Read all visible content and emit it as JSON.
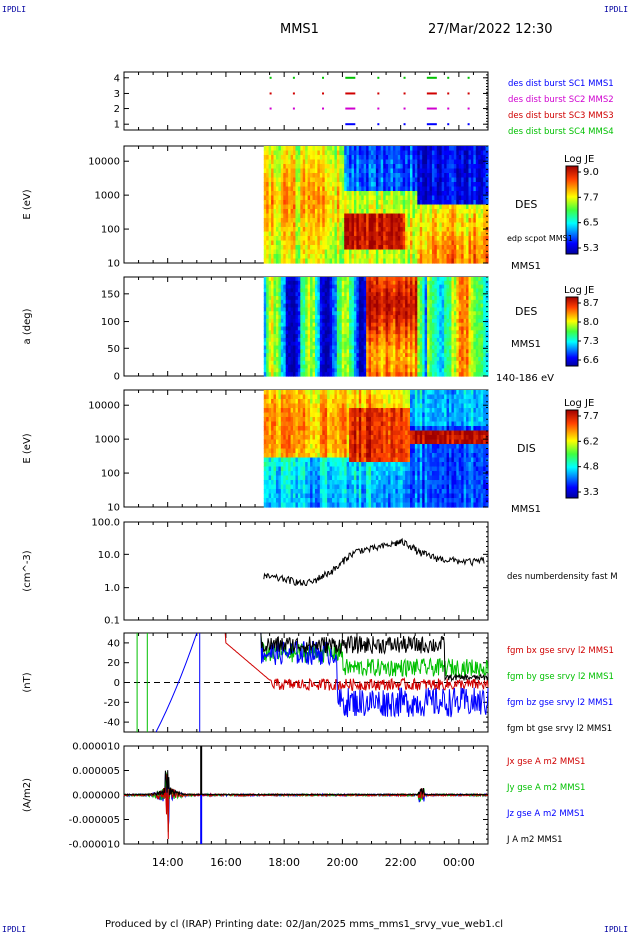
{
  "corners": {
    "top_left": "IPDLI",
    "top_right": "IPDLI",
    "bottom_left": "IPDLI",
    "bottom_right": "IPDLI"
  },
  "header": {
    "spacecraft": "MMS1",
    "datetime": "27/Mar/2022 12:30"
  },
  "footer": {
    "text": "Produced by cl (IRAP)   Printing date: 02/Jan/2025   mms_mms1_srvy_vue_web1.cl"
  },
  "colors": {
    "sc1": "#0000ff",
    "sc2": "#d000d0",
    "sc3": "#d00000",
    "sc4": "#00c000",
    "black": "#000000"
  },
  "chart_data": [
    {
      "type": "scatter",
      "id": "burst-availability",
      "ylabel": "",
      "y_ticks": [
        "1",
        "2",
        "3",
        "4"
      ],
      "legend": [
        {
          "label": "des dist burst SC1 MMS1",
          "color": "#0000ff"
        },
        {
          "label": "des dist burst SC2 MMS2",
          "color": "#d000d0"
        },
        {
          "label": "des dist burst SC3 MMS3",
          "color": "#d00000"
        },
        {
          "label": "des dist burst SC4 MMS4",
          "color": "#00c000"
        }
      ],
      "burst_times_h": [
        17.5,
        18.3,
        19.3,
        20.1,
        21.2,
        22.1,
        22.9,
        23.6,
        24.3
      ]
    },
    {
      "type": "heatmap",
      "id": "des-energy",
      "ylabel": "E (eV)",
      "y_ticks": [
        "10",
        "100",
        "1000",
        "10000"
      ],
      "right_labels": [
        "DES",
        "edp scpot MMS1",
        "MMS1"
      ],
      "colorbar": {
        "title": "Log JE",
        "ticks": [
          "9.0",
          "7.7",
          "6.5",
          "5.3"
        ]
      },
      "data_start_h": 17.3
    },
    {
      "type": "heatmap",
      "id": "des-pitch",
      "ylabel": "a (deg)",
      "y_ticks": [
        "0",
        "50",
        "100",
        "150"
      ],
      "right_labels": [
        "DES",
        "MMS1",
        "140-186 eV"
      ],
      "colorbar": {
        "title": "Log JE",
        "ticks": [
          "8.7",
          "8.0",
          "7.3",
          "6.6"
        ]
      },
      "data_start_h": 17.3
    },
    {
      "type": "heatmap",
      "id": "dis-energy",
      "ylabel": "E (eV)",
      "y_ticks": [
        "10",
        "100",
        "1000",
        "10000"
      ],
      "right_labels": [
        "DIS",
        "MMS1"
      ],
      "colorbar": {
        "title": "Log JE",
        "ticks": [
          "7.7",
          "6.2",
          "4.8",
          "3.3"
        ]
      },
      "data_start_h": 17.3
    },
    {
      "type": "line",
      "id": "density",
      "ylabel": "(cm^-3)",
      "y_ticks": [
        "0.1",
        "1.0",
        "10.0",
        "100.0"
      ],
      "legend": [
        {
          "label": "des numberdensity fast M",
          "color": "#000000"
        }
      ],
      "series": [
        {
          "x": [
            17.3,
            17.6,
            18.0,
            18.3,
            18.6,
            19.0,
            19.3,
            19.6,
            19.9,
            20.2,
            20.6,
            21.0,
            21.4,
            21.8,
            22.0,
            22.3,
            22.6,
            22.9,
            23.2,
            23.6,
            24.0,
            24.5,
            24.9
          ],
          "y": [
            2.2,
            2.0,
            1.8,
            1.6,
            1.3,
            1.5,
            2.2,
            3.0,
            4.5,
            9,
            14,
            15,
            18,
            22,
            25,
            20,
            12,
            10,
            8,
            7,
            6.5,
            6,
            7
          ]
        }
      ]
    },
    {
      "type": "line",
      "id": "magnetic-field",
      "ylabel": "(nT)",
      "y_ticks": [
        "-40",
        "-20",
        "0",
        "20",
        "40"
      ],
      "ylim": [
        -50,
        50
      ],
      "legend": [
        {
          "label": "fgm bx gse srvy l2 MMS1",
          "color": "#d00000"
        },
        {
          "label": "fgm by gse srvy l2 MMS1",
          "color": "#00c000"
        },
        {
          "label": "fgm bz gse srvy l2 MMS1",
          "color": "#0000ff"
        },
        {
          "label": "fgm bt gse srvy l2 MMS1",
          "color": "#000000"
        }
      ]
    },
    {
      "type": "line",
      "id": "current-density",
      "ylabel": "(A/m2)",
      "y_ticks": [
        "-0.000010",
        "-0.000005",
        "0.000000",
        "0.000005",
        "0.000010"
      ],
      "legend": [
        {
          "label": "Jx gse A m2 MMS1",
          "color": "#d00000"
        },
        {
          "label": "Jy gse A m2 MMS1",
          "color": "#00c000"
        },
        {
          "label": "Jz gse A m2 MMS1",
          "color": "#0000ff"
        },
        {
          "label": "J A m2 MMS1",
          "color": "#000000"
        }
      ]
    }
  ],
  "x_axis": {
    "labels": [
      "14:00",
      "16:00",
      "18:00",
      "20:00",
      "22:00",
      "00:00"
    ],
    "values_h": [
      14,
      16,
      18,
      20,
      22,
      24
    ],
    "range_h": [
      12.5,
      25.0
    ]
  }
}
